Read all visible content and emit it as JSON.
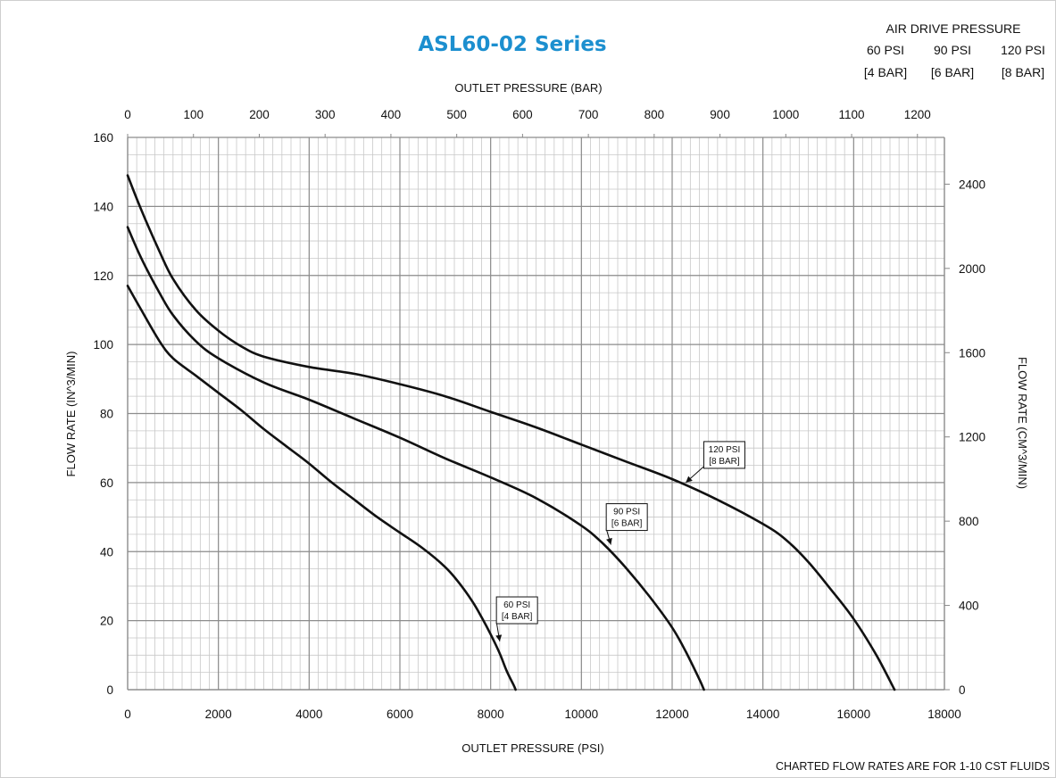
{
  "chart_data": {
    "type": "line",
    "title": "ASL60-02 Series",
    "xlabel": "OUTLET PRESSURE (PSI)",
    "x2label": "OUTLET PRESSURE (BAR)",
    "ylabel": "FLOW RATE (IN^3/MIN)",
    "y2label": "FLOW RATE (CM^3/MIN)",
    "xlim": [
      0,
      18000
    ],
    "ylim": [
      0,
      160
    ],
    "x2lim": [
      0,
      1241
    ],
    "y2lim": [
      0,
      2622
    ],
    "xticks": [
      0,
      2000,
      4000,
      6000,
      8000,
      10000,
      12000,
      14000,
      16000,
      18000
    ],
    "yticks": [
      0,
      20,
      40,
      60,
      80,
      100,
      120,
      140,
      160
    ],
    "x2ticks": [
      0,
      100,
      200,
      300,
      400,
      500,
      600,
      700,
      800,
      900,
      1000,
      1100,
      1200
    ],
    "y2ticks": [
      0,
      400,
      800,
      1200,
      1600,
      2000,
      2400
    ],
    "grid": true,
    "legend": {
      "title": "AIR DRIVE PRESSURE",
      "psi": [
        "60 PSI",
        "90 PSI",
        "120 PSI"
      ],
      "bar": [
        "[4 BAR]",
        "[6 BAR]",
        "[8 BAR]"
      ]
    },
    "note": "CHARTED FLOW RATES ARE FOR 1-10 CST FLUIDS",
    "series": [
      {
        "name": "60 PSI [4 BAR]",
        "label_lines": [
          "60 PSI",
          "[4 BAR]"
        ],
        "label_anchor": [
          8200,
          14
        ],
        "label_at": [
          8580,
          23
        ],
        "x": [
          0,
          300,
          700,
          1000,
          1500,
          2000,
          2500,
          3000,
          3500,
          4000,
          4500,
          5000,
          5500,
          6000,
          6500,
          7000,
          7300,
          7600,
          7800,
          8000,
          8200,
          8350,
          8500,
          8550
        ],
        "y": [
          117,
          110,
          101,
          96,
          91,
          86,
          81,
          75.5,
          70.5,
          65.5,
          60,
          55,
          50,
          45.5,
          41,
          35.5,
          31,
          25.5,
          21,
          16,
          10.5,
          5.5,
          1.5,
          0
        ]
      },
      {
        "name": "90 PSI [6 BAR]",
        "label_lines": [
          "90 PSI",
          "[6 BAR]"
        ],
        "label_anchor": [
          10650,
          42
        ],
        "label_at": [
          11000,
          50
        ],
        "x": [
          0,
          300,
          700,
          1000,
          1500,
          2000,
          3000,
          4000,
          5000,
          6000,
          7000,
          8000,
          9000,
          10000,
          10500,
          11000,
          11500,
          12000,
          12300,
          12600,
          12700
        ],
        "y": [
          134,
          125,
          115,
          108.5,
          101,
          96,
          89,
          84,
          78.5,
          73,
          67,
          61.5,
          55.5,
          47.5,
          42,
          35,
          27,
          18,
          11,
          3,
          0
        ]
      },
      {
        "name": "120 PSI [8 BAR]",
        "label_lines": [
          "120 PSI",
          "[8 BAR]"
        ],
        "label_anchor": [
          12300,
          60
        ],
        "label_at": [
          13150,
          68
        ],
        "x": [
          0,
          300,
          700,
          1000,
          1500,
          2000,
          2500,
          3000,
          4000,
          5000,
          6000,
          7000,
          8000,
          9000,
          10000,
          11000,
          12000,
          13000,
          14000,
          14500,
          15000,
          15500,
          16000,
          16500,
          16900
        ],
        "y": [
          149,
          139,
          127,
          119,
          110,
          104,
          99.5,
          96.5,
          93.5,
          91.5,
          88.5,
          85,
          80.5,
          76,
          71,
          66,
          61,
          55,
          48,
          43.5,
          37,
          29,
          20.5,
          10,
          0
        ]
      }
    ]
  }
}
